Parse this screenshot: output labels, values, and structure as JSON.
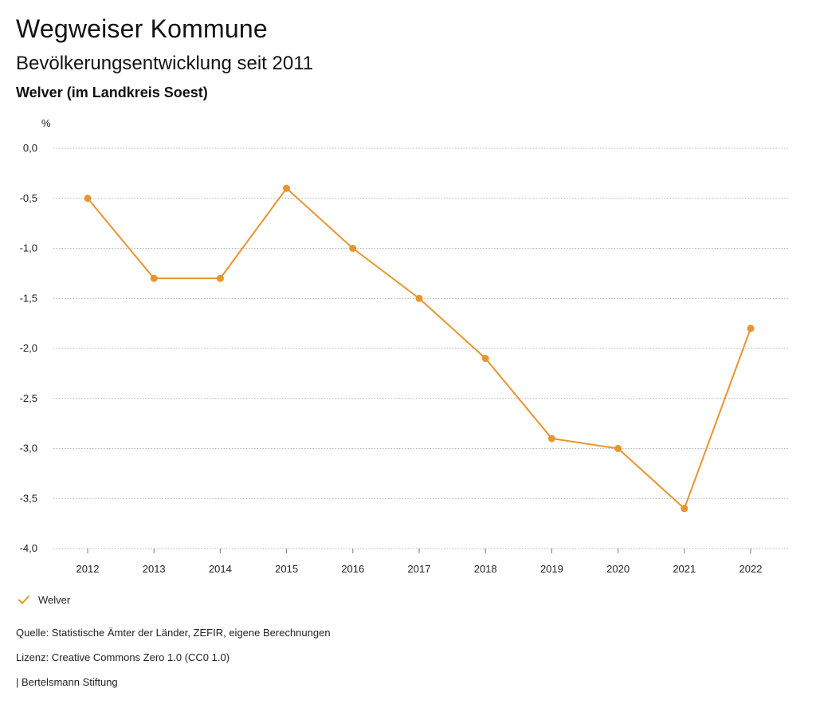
{
  "header": {
    "title": "Wegweiser Kommune",
    "subtitle": "Bevölkerungsentwicklung seit 2011",
    "region": "Welver (im Landkreis Soest)"
  },
  "chart_data": {
    "type": "line",
    "unit_label": "%",
    "x": [
      "2012",
      "2013",
      "2014",
      "2015",
      "2016",
      "2017",
      "2018",
      "2019",
      "2020",
      "2021",
      "2022"
    ],
    "series": [
      {
        "name": "Welver",
        "color": "#e8952f",
        "values": [
          -0.5,
          -1.3,
          -1.3,
          -0.4,
          -1.0,
          -1.5,
          -2.1,
          -2.9,
          -3.0,
          -3.6,
          -1.8
        ]
      }
    ],
    "ylim": [
      -4.0,
      0.0
    ],
    "yticks": [
      0.0,
      -0.5,
      -1.0,
      -1.5,
      -2.0,
      -2.5,
      -3.0,
      -3.5,
      -4.0
    ],
    "ytick_labels": [
      "0,0",
      "-0,5",
      "-1,0",
      "-1,5",
      "-2,0",
      "-2,5",
      "-3,0",
      "-3,5",
      "-4,0"
    ],
    "grid": true,
    "legend_position": "bottom-left"
  },
  "legend": {
    "label": "Welver"
  },
  "footer": {
    "source": "Quelle: Statistische Ämter der Länder, ZEFIR, eigene Berechnungen",
    "license": "Lizenz: Creative Commons Zero 1.0 (CC0 1.0)",
    "brand": "| Bertelsmann Stiftung"
  }
}
